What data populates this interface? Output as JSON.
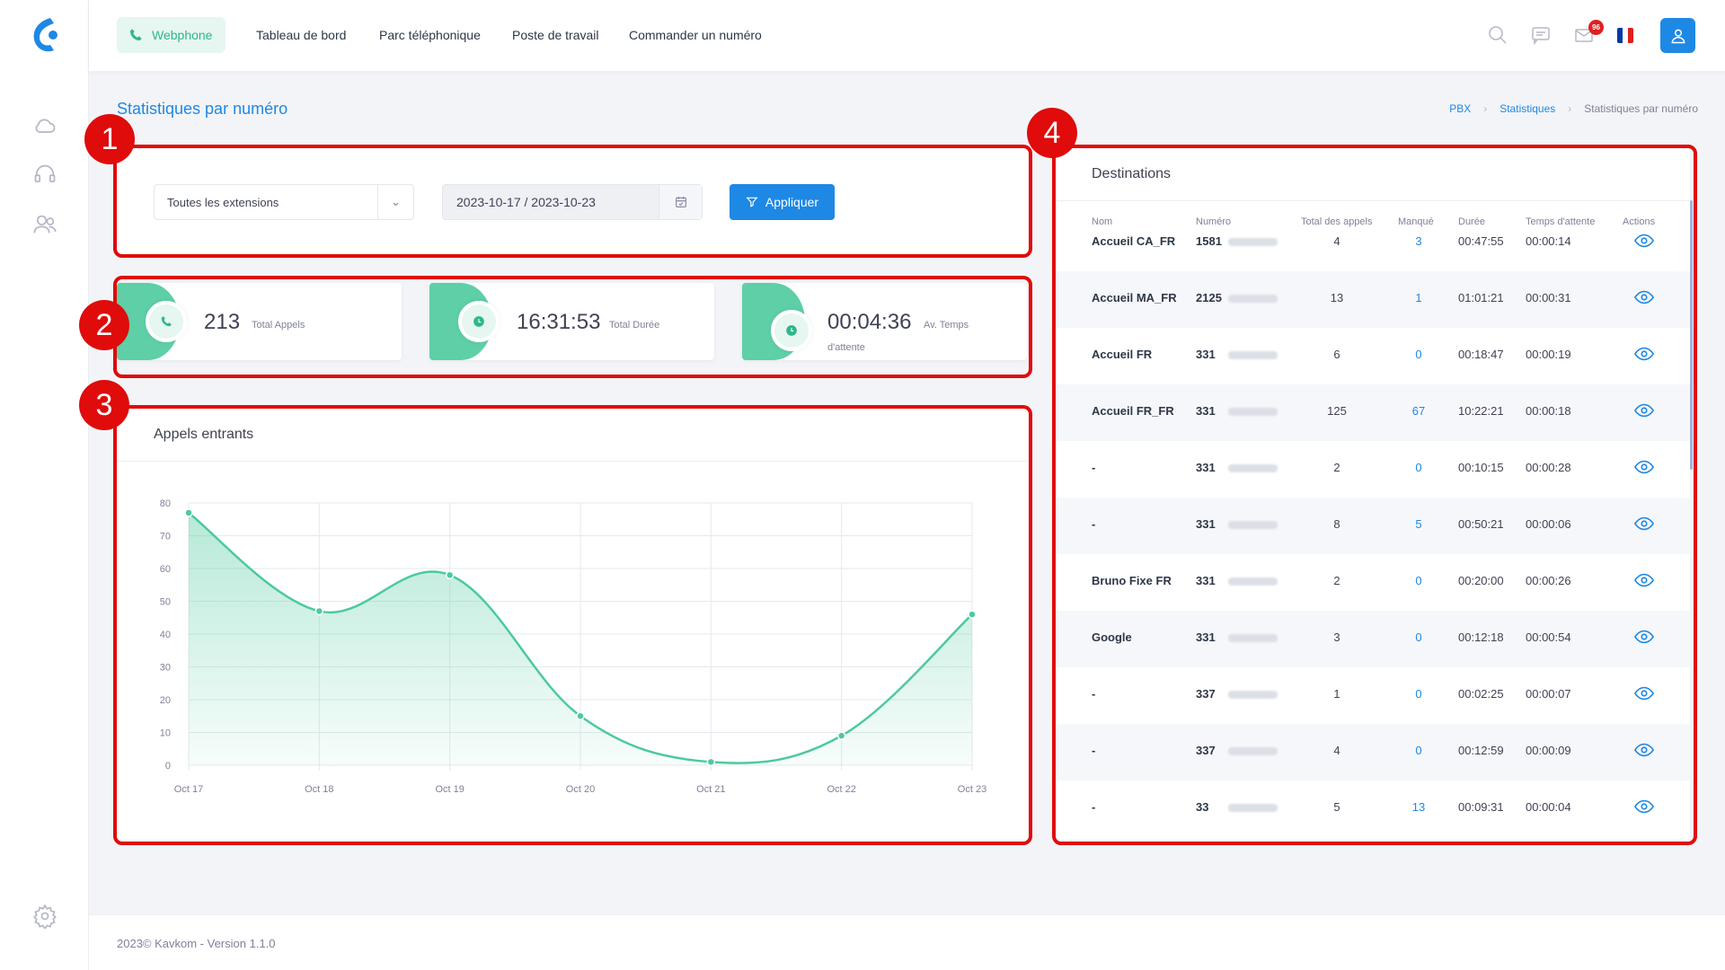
{
  "topnav": {
    "webphone": "Webphone",
    "items": [
      "Tableau de bord",
      "Parc téléphonique",
      "Poste de travail",
      "Commander un numéro"
    ],
    "mail_badge": "96"
  },
  "page": {
    "title": "Statistiques par numéro",
    "breadcrumb": [
      "PBX",
      "Statistiques",
      "Statistiques par numéro"
    ]
  },
  "filter": {
    "extension_select": "Toutes les extensions",
    "date_range": "2023-10-17 / 2023-10-23",
    "apply_label": "Appliquer"
  },
  "stats": {
    "total_calls_value": "213",
    "total_calls_label": "Total Appels",
    "total_duration_value": "16:31:53",
    "total_duration_label": "Total Durée",
    "avg_wait_value": "00:04:36",
    "avg_wait_label_1": "Av. Temps",
    "avg_wait_label_2": "d'attente"
  },
  "chart": {
    "title": "Appels entrants"
  },
  "chart_data": {
    "type": "area",
    "title": "Appels entrants",
    "categories": [
      "Oct 17",
      "Oct 18",
      "Oct 19",
      "Oct 20",
      "Oct 21",
      "Oct 22",
      "Oct 23"
    ],
    "values": [
      77,
      47,
      58,
      15,
      1,
      9,
      46
    ],
    "ylim": [
      0,
      80
    ],
    "yticks": [
      0,
      10,
      20,
      30,
      40,
      50,
      60,
      70,
      80
    ],
    "grid": true,
    "color": "#4cc9a0"
  },
  "destinations": {
    "title": "Destinations",
    "headers": [
      "Nom",
      "Numéro",
      "Total des appels",
      "Manqué",
      "Durée",
      "Temps d'attente",
      "Actions"
    ],
    "rows": [
      {
        "name": "Accueil CA_FR",
        "num": "1581",
        "total": "4",
        "missed": "3",
        "duration": "00:47:55",
        "wait": "00:00:14"
      },
      {
        "name": "Accueil MA_FR",
        "num": "2125",
        "total": "13",
        "missed": "1",
        "duration": "01:01:21",
        "wait": "00:00:31"
      },
      {
        "name": "Accueil FR",
        "num": "331",
        "total": "6",
        "missed": "0",
        "duration": "00:18:47",
        "wait": "00:00:19"
      },
      {
        "name": "Accueil FR_FR",
        "num": "331",
        "total": "125",
        "missed": "67",
        "duration": "10:22:21",
        "wait": "00:00:18"
      },
      {
        "name": "-",
        "num": "331",
        "total": "2",
        "missed": "0",
        "duration": "00:10:15",
        "wait": "00:00:28"
      },
      {
        "name": "-",
        "num": "331",
        "total": "8",
        "missed": "5",
        "duration": "00:50:21",
        "wait": "00:00:06"
      },
      {
        "name": "Bruno Fixe FR",
        "num": "331",
        "total": "2",
        "missed": "0",
        "duration": "00:20:00",
        "wait": "00:00:26"
      },
      {
        "name": "Google",
        "num": "331",
        "total": "3",
        "missed": "0",
        "duration": "00:12:18",
        "wait": "00:00:54"
      },
      {
        "name": "-",
        "num": "337",
        "total": "1",
        "missed": "0",
        "duration": "00:02:25",
        "wait": "00:00:07"
      },
      {
        "name": "-",
        "num": "337",
        "total": "4",
        "missed": "0",
        "duration": "00:12:59",
        "wait": "00:00:09"
      },
      {
        "name": "-",
        "num": "33",
        "total": "5",
        "missed": "13",
        "duration": "00:09:31",
        "wait": "00:00:04"
      }
    ]
  },
  "markers": [
    "1",
    "2",
    "3",
    "4"
  ],
  "footer": "2023© Kavkom - Version 1.1.0",
  "colors": {
    "accent": "#1e88e5",
    "green": "#5ecfa6",
    "annotation": "#e00b0b"
  }
}
